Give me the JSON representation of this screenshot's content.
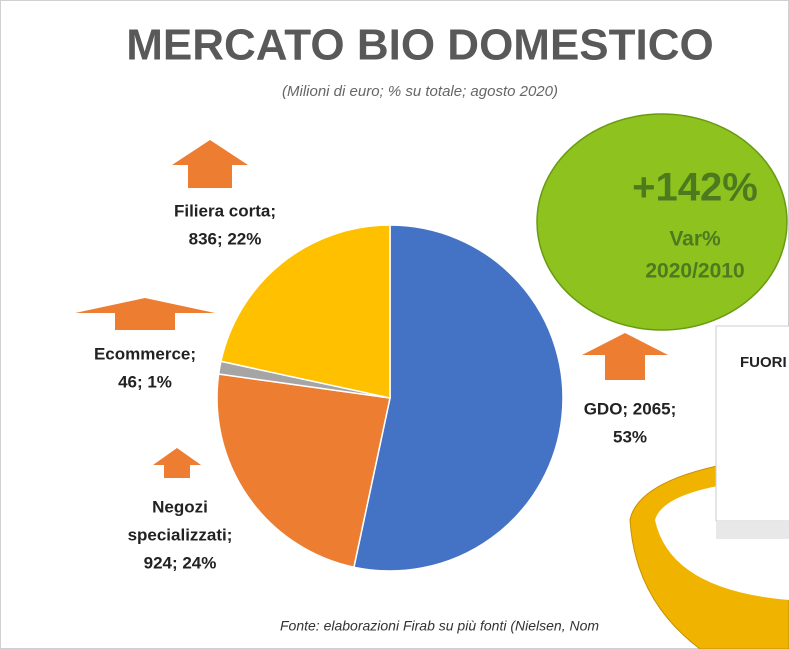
{
  "chart_data": {
    "type": "pie",
    "title": "MERCATO BIO DOMESTICO",
    "subtitle": "(Milioni di euro; % su totale; agosto 2020)",
    "values": [
      2065,
      924,
      46,
      836
    ],
    "value_labels": [
      [
        "GDO; 2065;",
        "53%"
      ],
      [
        "Negozi",
        "specializzati;",
        "924; 24%"
      ],
      [
        "Ecommerce;",
        "46; 1%"
      ],
      [
        "Filiera corta;",
        "836; 22%"
      ]
    ],
    "colors": [
      "#4472c4",
      "#ed7d31",
      "#a5a5a5",
      "#ffc000"
    ],
    "source": "Fonte: elaborazioni Firab su più fonti (Nielsen, Nom",
    "callout": {
      "value": "+142%",
      "label": [
        "Var%",
        "2020/2010"
      ]
    },
    "box_text": "FUORI"
  }
}
